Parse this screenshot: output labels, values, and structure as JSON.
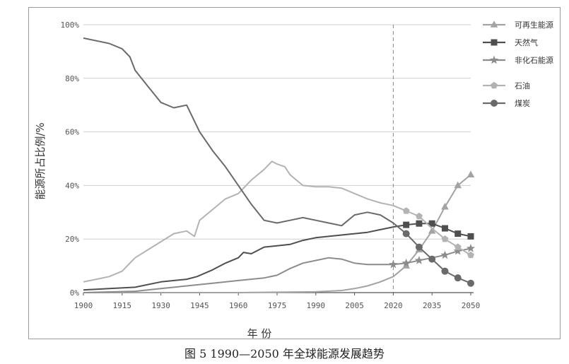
{
  "caption": "图 5 1990—2050 年全球能源发展趋势",
  "chart_data": {
    "type": "line",
    "xlabel": "年 份",
    "ylabel": "能源所占比例/%",
    "xlim": [
      1900,
      2050
    ],
    "ylim": [
      0,
      100
    ],
    "x_ticks": [
      "1900",
      "1915",
      "1930",
      "1945",
      "1960",
      "1975",
      "1990",
      "2005",
      "2020",
      "2035",
      "2050"
    ],
    "y_ticks": [
      "0%",
      "20%",
      "40%",
      "60%",
      "80%",
      "100%"
    ],
    "grid": "horizontal",
    "reference_line_x": 2020,
    "legend_position": "top-right",
    "series": [
      {
        "name": "可再生能源",
        "color": "#a3a3a3",
        "marker": "triangle",
        "x": [
          1900,
          1960,
          1990,
          2000,
          2005,
          2010,
          2015,
          2020,
          2025,
          2030,
          2035,
          2040,
          2045,
          2050
        ],
        "y": [
          0,
          0,
          0.3,
          0.8,
          1.5,
          2.5,
          4,
          6,
          10,
          16,
          23,
          32,
          40,
          44
        ],
        "marker_x": [
          2025,
          2030,
          2035,
          2040,
          2045,
          2050
        ]
      },
      {
        "name": "天然气",
        "color": "#4f4f4f",
        "marker": "square",
        "x": [
          1900,
          1910,
          1920,
          1930,
          1940,
          1944,
          1950,
          1955,
          1960,
          1962,
          1965,
          1970,
          1975,
          1980,
          1985,
          1990,
          1995,
          2000,
          2005,
          2010,
          2015,
          2020,
          2025,
          2030,
          2035,
          2040,
          2045,
          2050
        ],
        "y": [
          1,
          1.5,
          2,
          4,
          5,
          6,
          8.5,
          11,
          13,
          15,
          14.5,
          17,
          17.5,
          18,
          19.5,
          20.5,
          21,
          21.5,
          22,
          22.5,
          23.5,
          24.5,
          25.3,
          25.8,
          25.8,
          24,
          22,
          21
        ],
        "marker_x": [
          2025,
          2030,
          2035,
          2040,
          2045,
          2050
        ]
      },
      {
        "name": "非化石能源",
        "color": "#8c8c8c",
        "marker": "star",
        "x": [
          1900,
          1920,
          1930,
          1940,
          1950,
          1960,
          1970,
          1975,
          1980,
          1985,
          1990,
          1995,
          2000,
          2005,
          2010,
          2015,
          2020,
          2025,
          2030,
          2035,
          2040,
          2045,
          2050
        ],
        "y": [
          0,
          0.5,
          1.5,
          2.5,
          3.5,
          4.5,
          5.5,
          6.5,
          9,
          11,
          12,
          13,
          12.5,
          11,
          10.5,
          10.5,
          10.5,
          11,
          12,
          13,
          14,
          15.5,
          16.5
        ],
        "marker_x": [
          2020,
          2025,
          2030,
          2040,
          2045,
          2050
        ]
      },
      {
        "name": "石油",
        "color": "#b3b3b3",
        "marker": "pentagon",
        "x": [
          1900,
          1905,
          1910,
          1915,
          1920,
          1925,
          1930,
          1935,
          1940,
          1943,
          1945,
          1950,
          1955,
          1960,
          1965,
          1970,
          1973,
          1975,
          1978,
          1980,
          1985,
          1990,
          1995,
          2000,
          2005,
          2010,
          2015,
          2020,
          2025,
          2030,
          2035,
          2040,
          2045,
          2050
        ],
        "y": [
          4,
          5,
          6,
          8,
          13,
          16,
          19,
          22,
          23,
          21,
          27,
          31,
          35,
          37,
          42,
          46,
          49,
          48,
          47,
          44,
          40,
          39.5,
          39.5,
          39,
          37,
          35,
          33.5,
          32.5,
          30.5,
          28.5,
          24,
          20,
          17,
          14
        ],
        "marker_x": [
          2025,
          2030,
          2040,
          2045,
          2050
        ]
      },
      {
        "name": "煤炭",
        "color": "#6a6a6a",
        "marker": "circle",
        "x": [
          1900,
          1905,
          1910,
          1915,
          1918,
          1920,
          1925,
          1930,
          1935,
          1940,
          1945,
          1950,
          1955,
          1960,
          1965,
          1970,
          1975,
          1980,
          1985,
          1990,
          1995,
          2000,
          2005,
          2010,
          2015,
          2020,
          2025,
          2030,
          2035,
          2040,
          2045,
          2050
        ],
        "y": [
          95,
          94,
          93,
          91,
          88,
          83,
          77,
          71,
          69,
          70,
          60,
          53,
          47,
          40,
          33,
          27,
          26,
          27,
          28,
          27,
          26,
          25,
          29,
          30,
          29,
          26,
          22,
          17,
          12.5,
          8,
          5.5,
          3.5
        ],
        "marker_x": [
          2025,
          2030,
          2035,
          2040,
          2045,
          2050
        ]
      }
    ]
  }
}
